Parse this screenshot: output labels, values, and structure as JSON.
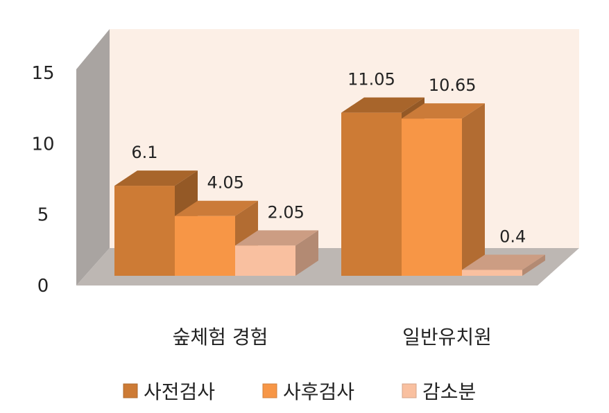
{
  "chart_data": {
    "type": "bar",
    "style": "3d-clustered-column",
    "categories": [
      "숲체험 경험",
      "일반유치원"
    ],
    "series": [
      {
        "name": "사전검사",
        "values": [
          6.1,
          11.05
        ],
        "color": "#cd7b35"
      },
      {
        "name": "사후검사",
        "values": [
          4.05,
          10.65
        ],
        "color": "#f79646"
      },
      {
        "name": "감소분",
        "values": [
          2.05,
          0.4
        ],
        "color": "#f9c0a0"
      }
    ],
    "data_labels": [
      [
        "6.1",
        "11.05"
      ],
      [
        "4.05",
        "10.65"
      ],
      [
        "2.05",
        "0.4"
      ]
    ],
    "yticks": [
      "0",
      "5",
      "10",
      "15"
    ],
    "ylim": [
      0,
      15
    ],
    "grid": false,
    "legend": "bottom",
    "title": "",
    "xlabel": "",
    "ylabel": "",
    "wall_color": "#fcefe6",
    "floor_color": "#bdb7b3"
  }
}
